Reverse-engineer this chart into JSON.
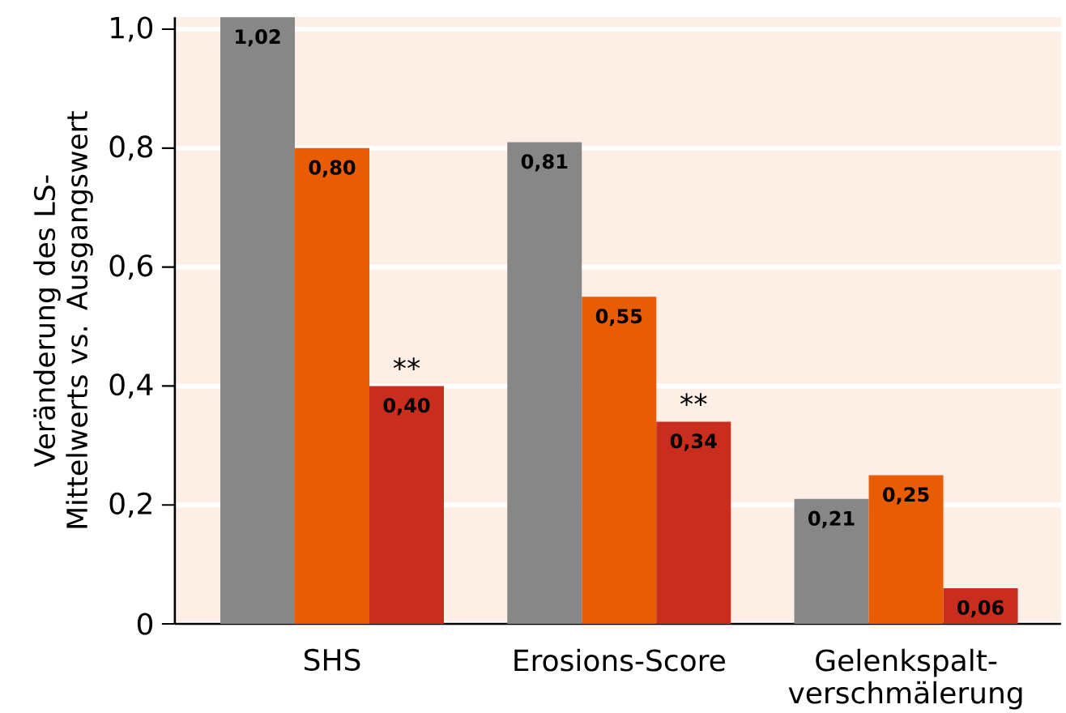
{
  "chart_data": {
    "type": "bar",
    "ylabel": "Veränderung des LS-Mittelwerts vs. Ausgangswert",
    "categories": [
      "SHS",
      "Erosions-Score",
      "Gelenkspalt-verschmälerung"
    ],
    "series": [
      {
        "color": "#878787",
        "values": [
          1.02,
          0.81,
          0.21
        ],
        "value_labels": [
          "1,02",
          "0,81",
          "0,21"
        ]
      },
      {
        "color": "#e85d04",
        "values": [
          0.8,
          0.55,
          0.25
        ],
        "value_labels": [
          "0,80",
          "0,55",
          "0,25"
        ]
      },
      {
        "color": "#c92d1e",
        "values": [
          0.4,
          0.34,
          0.06
        ],
        "value_labels": [
          "0,40",
          "0,34",
          "0,06"
        ]
      }
    ],
    "ylim": [
      0,
      1.02
    ],
    "yticks": [
      0,
      {
        "value": 0.2,
        "label": "0,2"
      },
      {
        "value": 0.4,
        "label": "0,4"
      },
      {
        "value": 0.6,
        "label": "0,6"
      },
      {
        "value": 0.8,
        "label": "0,8"
      },
      {
        "value": 1.0,
        "label": "1,0"
      }
    ],
    "grid": "y",
    "annotations": [
      "**",
      "**"
    ]
  }
}
